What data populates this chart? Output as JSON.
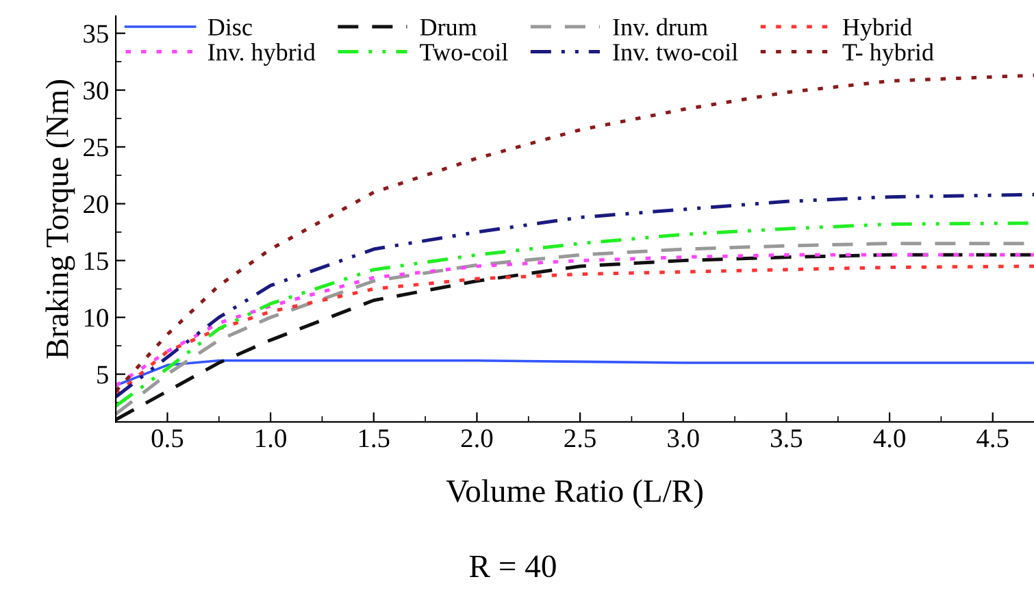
{
  "chart_data": {
    "type": "line",
    "xlabel": "Volume Ratio (L/R)",
    "ylabel": "Braking Torque (Nm)",
    "annotations": [
      "R = 40"
    ],
    "x": [
      0.25,
      0.5,
      0.75,
      1.0,
      1.5,
      2.0,
      2.5,
      3.0,
      3.5,
      4.0,
      4.7
    ],
    "xlim": [
      0.25,
      4.7
    ],
    "xticks": [
      0.5,
      {
        "value": 1,
        "label": "1.0"
      },
      1.5,
      {
        "value": 2,
        "label": "2.0"
      },
      2.5,
      {
        "value": 3,
        "label": "3.0"
      },
      3.5,
      {
        "value": 4,
        "label": "4.0"
      },
      4.5
    ],
    "ylim": [
      0.8,
      36.5
    ],
    "yticks": [
      5,
      10,
      15,
      20,
      25,
      30,
      35
    ],
    "grid": false,
    "legend": "top left",
    "marker": "none",
    "series": [
      {
        "name": "Disc",
        "color": "#3355ff",
        "line_style": "solid",
        "values": [
          4.0,
          5.8,
          6.2,
          6.2,
          6.2,
          6.2,
          6.1,
          6.0,
          6.0,
          6.0,
          6.0
        ]
      },
      {
        "name": "Drum",
        "color": "#111111",
        "line_style": "dashed",
        "values": [
          1.0,
          3.5,
          6.0,
          8.0,
          11.5,
          13.2,
          14.5,
          15.0,
          15.3,
          15.5,
          15.5
        ]
      },
      {
        "name": "Inv. drum",
        "color": "#999999",
        "line_style": "dashed",
        "values": [
          1.5,
          5.0,
          8.0,
          10.0,
          13.2,
          14.6,
          15.5,
          16.0,
          16.3,
          16.5,
          16.5
        ]
      },
      {
        "name": "Hybrid",
        "color": "#ff3333",
        "line_style": "dotted",
        "values": [
          3.2,
          7.0,
          9.0,
          10.5,
          12.5,
          13.4,
          13.8,
          14.0,
          14.2,
          14.4,
          14.5
        ]
      },
      {
        "name": "Inv. hybrid",
        "color": "#ff44ff",
        "line_style": "dotted",
        "values": [
          4.0,
          7.0,
          9.5,
          11.0,
          13.5,
          14.5,
          15.0,
          15.3,
          15.5,
          15.5,
          15.5
        ]
      },
      {
        "name": "Two-coil",
        "color": "#22ee22",
        "line_style": "dashdot",
        "values": [
          2.2,
          5.5,
          9.0,
          11.2,
          14.2,
          15.5,
          16.5,
          17.3,
          17.8,
          18.2,
          18.3
        ]
      },
      {
        "name": "Inv. two-coil",
        "color": "#1a1a80",
        "line_style": "dashdot",
        "values": [
          3.0,
          6.5,
          10.0,
          12.8,
          16.0,
          17.5,
          18.8,
          19.5,
          20.2,
          20.6,
          20.8
        ]
      },
      {
        "name": "T- hybrid",
        "color": "#8b1a1a",
        "line_style": "dotted",
        "values": [
          3.5,
          8.5,
          12.8,
          16.0,
          21.0,
          24.0,
          26.5,
          28.3,
          29.8,
          30.8,
          31.3
        ]
      }
    ]
  }
}
